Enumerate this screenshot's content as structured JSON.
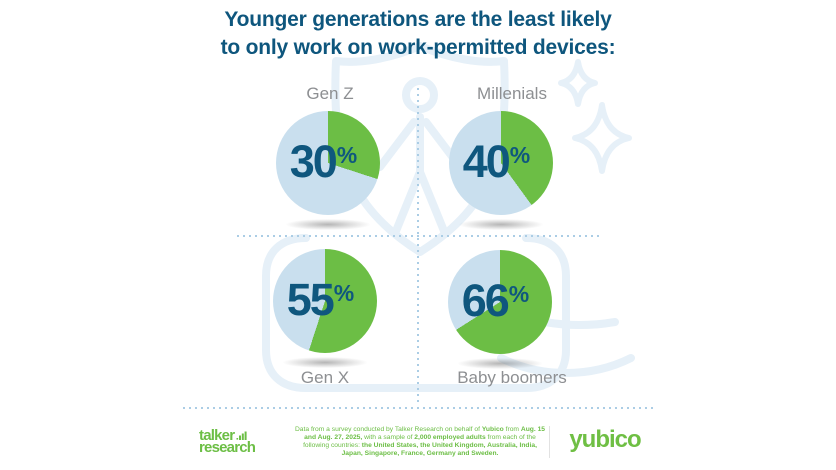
{
  "title": {
    "line1": "Younger generations are the least likely",
    "line2": "to only work on work-permitted devices:"
  },
  "charts": [
    {
      "label": "Gen Z",
      "value_text": "30",
      "percent_sign": "%"
    },
    {
      "label": "Millenials",
      "value_text": "40",
      "percent_sign": "%"
    },
    {
      "label": "Gen X",
      "value_text": "55",
      "percent_sign": "%"
    },
    {
      "label": "Baby boomers",
      "value_text": "66",
      "percent_sign": "%"
    }
  ],
  "footer": {
    "talker_logo_line1": "talker",
    "talker_logo_line2": "research",
    "yubico_logo": "yubico",
    "disclaimer_segments": [
      {
        "text": "Data from a survey conducted by Talker Research on behalf of ",
        "bold": false
      },
      {
        "text": "Yubico",
        "bold": true
      },
      {
        "text": " from ",
        "bold": false
      },
      {
        "text": "Aug. 15 and Aug. 27, 2025,",
        "bold": true
      },
      {
        "text": " with a sample of ",
        "bold": false
      },
      {
        "text": "2,000 employed adults",
        "bold": true
      },
      {
        "text": " from each of the following countries: ",
        "bold": false
      },
      {
        "text": "the United States, the United Kingdom, Australia, India, Japan, Singapore, France, Germany and Sweden.",
        "bold": true
      }
    ]
  },
  "icons": {
    "background_watermark": "shield-with-person-icon",
    "background_sparkles": "four-point-sparkle-icon",
    "talker_logo_icon": "bar-chart-icon"
  },
  "colors": {
    "title_text": "#0e567d",
    "percent_text": "#0f577e",
    "label_gray": "#8d8f92",
    "brand_green": "#6cbe45",
    "pie_value_green": "#6cbe45",
    "pie_remainder_blue": "#c9dfee",
    "watermark_blue": "#e6f0f8",
    "dotted_line_blue": "#abcde5"
  },
  "chart_data": {
    "type": "pie",
    "title": "Younger generations are the least likely to only work on work-permitted devices:",
    "categories": [
      "Gen Z",
      "Millenials",
      "Gen X",
      "Baby boomers"
    ],
    "values": [
      30,
      40,
      55,
      66
    ],
    "unit": "%",
    "slice_colors": {
      "value": "#6cbe45",
      "remainder": "#c9dfee"
    },
    "slice_start": "12-oclock-clockwise",
    "layout": "2x2-grid",
    "value_label_position": "center-of-pie",
    "legend": "none"
  }
}
